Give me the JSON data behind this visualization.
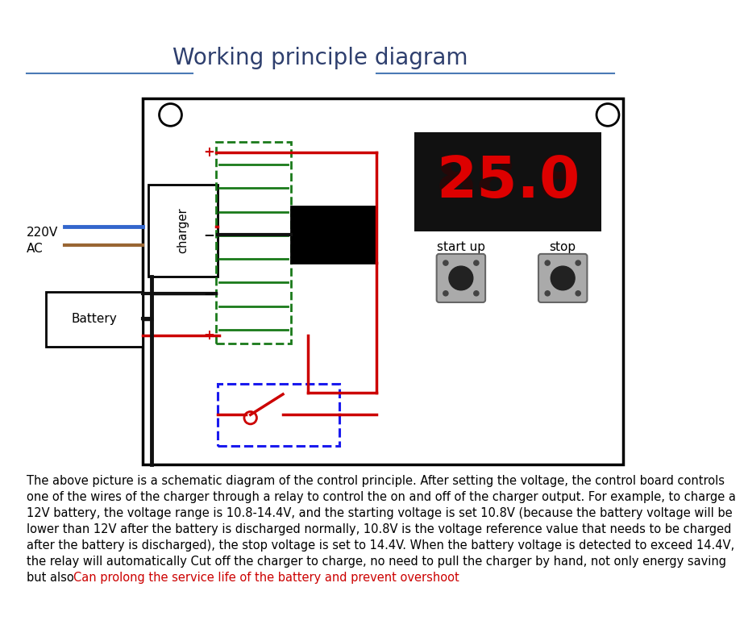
{
  "title": "Working principle diagram",
  "title_color": "#2e3f6e",
  "title_fontsize": 20,
  "bg_color": "#ffffff",
  "body_line1": "The above picture is a schematic diagram of the control principle. After setting the voltage, the control board controls",
  "body_line2": "one of the wires of the charger through a relay to control the on and off of the charger output. For example, to charge a",
  "body_line3": "12V battery, the voltage range is 10.8-14.4V, and the starting voltage is set 10.8V (because the battery voltage will be",
  "body_line4": "lower than 12V after the battery is discharged normally, 10.8V is the voltage reference value that needs to be charged",
  "body_line5": "after the battery is discharged), the stop voltage is set to 14.4V. When the battery voltage is detected to exceed 14.4V,",
  "body_line6": "the relay will automatically Cut off the charger to charge, no need to pull the charger by hand, not only energy saving",
  "body_line7": "but also ",
  "red_text": "Can prolong the service life of the battery and prevent overshoot",
  "body_fontsize": 10.5,
  "line_color_h": "#4a7ab5",
  "display_color": "#dd0000",
  "display_bg": "#111111",
  "green_dashed": "#1a7a1a",
  "blue_dashed": "#1a1aee",
  "red_wire": "#cc0000",
  "black_wire": "#111111",
  "blue_wire": "#3366cc",
  "brown_wire": "#996633",
  "btn_face": "#aaaaaa",
  "btn_edge": "#666666",
  "btn_center": "#222222"
}
